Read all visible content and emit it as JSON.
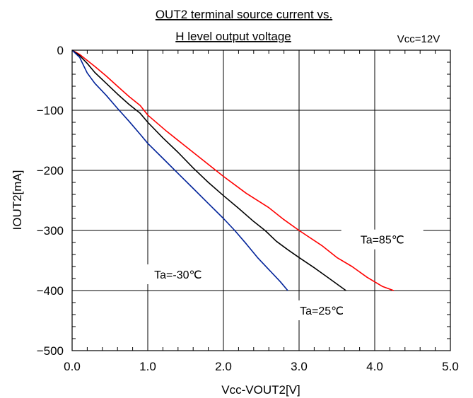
{
  "chart_data": {
    "type": "line",
    "title_line1": "OUT2 terminal source current vs.",
    "title_line2": "H level output voltage",
    "condition": "Vcc=12V",
    "xlabel": "Vcc-VOUT2[V]",
    "ylabel": "IOUT2[mA]",
    "xlim": [
      0,
      5
    ],
    "ylim": [
      -500,
      0
    ],
    "xticks": [
      "0.0",
      "1.0",
      "2.0",
      "3.0",
      "4.0",
      "5.0"
    ],
    "yticks": [
      "0",
      "-100",
      "-200",
      "-300",
      "-400",
      "-500"
    ],
    "grid": true,
    "series": [
      {
        "name": "Ta=85°C",
        "color": "#ff0000",
        "x": [
          0,
          0.1,
          0.2,
          0.3,
          0.45,
          0.6,
          0.75,
          0.9,
          1.0,
          1.25,
          1.5,
          1.8,
          2.0,
          2.3,
          2.6,
          2.8,
          3.0,
          3.3,
          3.5,
          3.7,
          3.9,
          4.1,
          4.25
        ],
        "values": [
          0,
          -7,
          -17,
          -27,
          -43,
          -60,
          -77,
          -92,
          -108,
          -135,
          -160,
          -190,
          -210,
          -238,
          -262,
          -282,
          -300,
          -325,
          -345,
          -360,
          -378,
          -393,
          -400
        ]
      },
      {
        "name": "Ta=25°C",
        "color": "#000000",
        "x": [
          0,
          0.1,
          0.2,
          0.3,
          0.45,
          0.6,
          0.75,
          0.9,
          1.0,
          1.2,
          1.4,
          1.6,
          1.8,
          2.0,
          2.2,
          2.4,
          2.55,
          2.7,
          2.85,
          3.0,
          3.2,
          3.4,
          3.62
        ],
        "values": [
          0,
          -9,
          -22,
          -37,
          -55,
          -73,
          -90,
          -105,
          -120,
          -146,
          -170,
          -196,
          -220,
          -242,
          -263,
          -285,
          -300,
          -318,
          -332,
          -345,
          -362,
          -380,
          -400
        ]
      },
      {
        "name": "Ta=-30°C",
        "color": "#002299",
        "x": [
          0,
          0.1,
          0.15,
          0.2,
          0.3,
          0.45,
          0.6,
          0.75,
          0.9,
          1.0,
          1.2,
          1.4,
          1.6,
          1.8,
          2.0,
          2.15,
          2.3,
          2.45,
          2.6,
          2.75,
          2.85
        ],
        "values": [
          0,
          -12,
          -25,
          -38,
          -55,
          -75,
          -97,
          -118,
          -140,
          -155,
          -180,
          -205,
          -230,
          -255,
          -280,
          -300,
          -322,
          -345,
          -365,
          -385,
          -400
        ]
      }
    ],
    "annotations": [
      {
        "text": "Ta=85℃",
        "x": 4.1,
        "y": -322
      },
      {
        "text": "Ta=25℃",
        "x": 3.3,
        "y": -440
      },
      {
        "text": "Ta=-30℃",
        "x": 1.4,
        "y": -380
      }
    ]
  }
}
